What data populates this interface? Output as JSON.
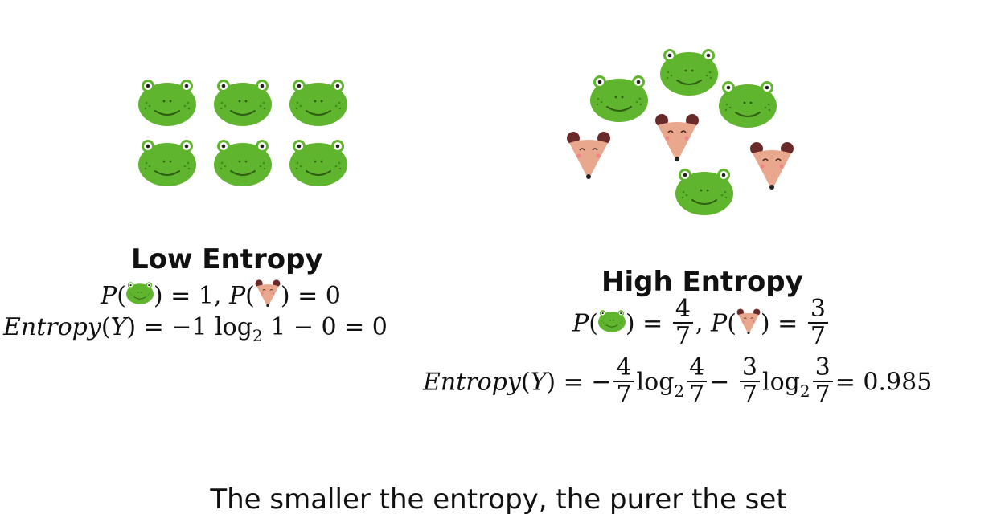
{
  "low": {
    "heading": "Low Entropy",
    "prob_line": {
      "p": "P",
      "eq_frog": ") = 1, ",
      "eq_mouse": ") = 0"
    },
    "entropy_line": "Entropy(Y) = −1 log₂ 1 − 0 = 0",
    "frogs": 6
  },
  "high": {
    "heading": "High Entropy",
    "prob_frog_num": "4",
    "prob_frog_den": "7",
    "prob_mouse_num": "3",
    "prob_mouse_den": "7",
    "entropy_result": "0.985",
    "frogs": 4,
    "mice": 3
  },
  "caption": "The smaller the entropy, the purer the set",
  "colors": {
    "frog_green": "#5fb52d",
    "frog_dark": "#3e8a1c",
    "mouse_face": "#e9a88d",
    "mouse_ear": "#6b2a2a"
  }
}
